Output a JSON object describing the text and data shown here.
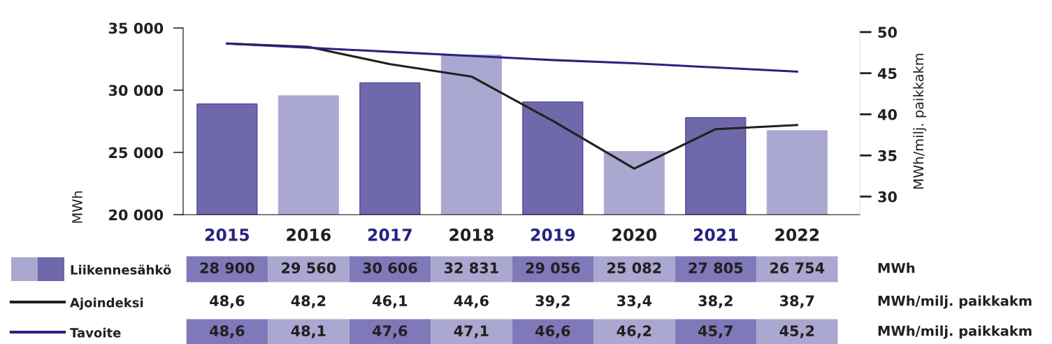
{
  "chart_data": {
    "type": "bar",
    "categories": [
      "2015",
      "2016",
      "2017",
      "2018",
      "2019",
      "2020",
      "2021",
      "2022"
    ],
    "series": [
      {
        "name": "Liikennesähkö",
        "colors": [
          "#6f68ab",
          "#aaa7d0",
          "#6f68ab",
          "#aaa7d0",
          "#6f68ab",
          "#aaa7d0",
          "#6f68ab",
          "#aaa7d0"
        ],
        "values": [
          28900,
          29560,
          30606,
          32831,
          29056,
          25082,
          27805,
          26754
        ],
        "value_labels": [
          "28 900",
          "29 560",
          "30 606",
          "32 831",
          "29 056",
          "25 082",
          "27 805",
          "26 754"
        ]
      },
      {
        "name": "Ajoindeksi",
        "type": "line",
        "axis": "y2",
        "color": "#231f20",
        "values": [
          48.6,
          48.2,
          46.1,
          44.6,
          39.2,
          33.4,
          38.2,
          38.7
        ],
        "value_labels": [
          "48,6",
          "48,2",
          "46,1",
          "44,6",
          "39,2",
          "33,4",
          "38,2",
          "38,7"
        ]
      },
      {
        "name": "Tavoite",
        "type": "line",
        "axis": "y2",
        "color": "#28237f",
        "values": [
          48.6,
          48.1,
          47.6,
          47.1,
          46.6,
          46.2,
          45.7,
          45.2
        ],
        "value_labels": [
          "48,6",
          "48,1",
          "47,6",
          "47,1",
          "46,6",
          "46,2",
          "45,7",
          "45,2"
        ]
      }
    ],
    "ylabel": "MWh",
    "y2label": "MWh/milj. paikkakm",
    "ylim": [
      20000,
      35000
    ],
    "yticks": [
      {
        "value": 20000,
        "label": "20 000"
      },
      {
        "value": 25000,
        "label": "25 000"
      },
      {
        "value": 30000,
        "label": "30 000"
      },
      {
        "value": 35000,
        "label": "35 000"
      }
    ],
    "y2lim": [
      27.8,
      50.5
    ],
    "y2ticks": [
      30,
      35,
      40,
      45,
      50
    ],
    "annotations": [
      "MWh",
      "MWh/milj. paikkakm",
      "MWh/milj. paikkakm"
    ],
    "legend": "bottom left",
    "grid": false,
    "marker": "none",
    "line_style": "solid"
  }
}
